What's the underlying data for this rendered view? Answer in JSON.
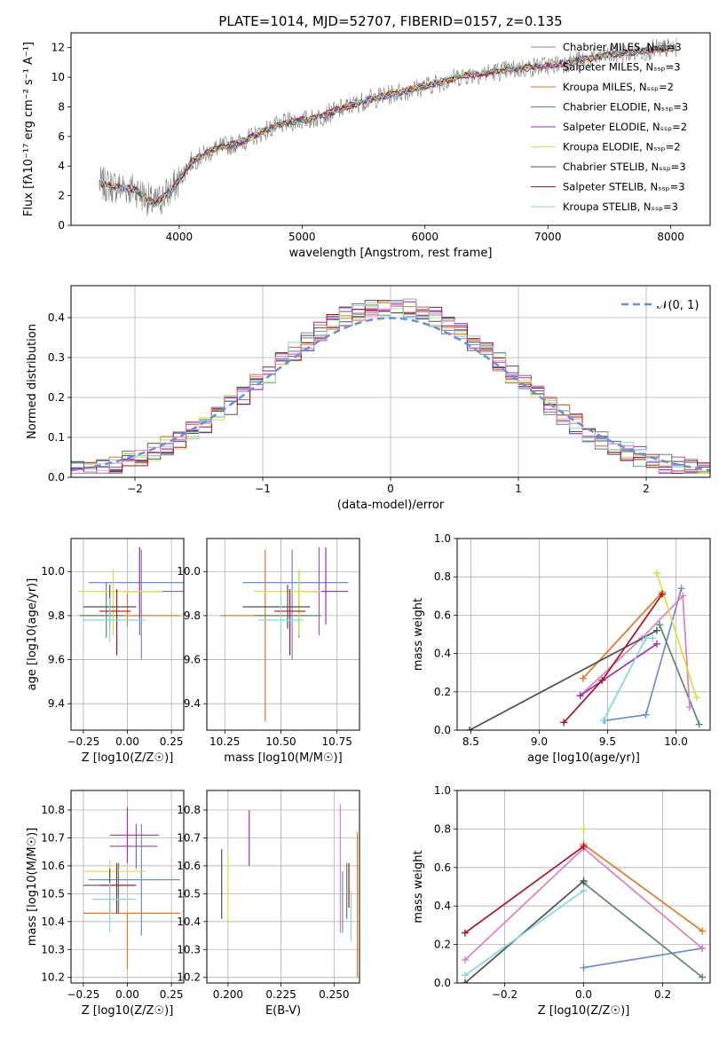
{
  "figure": {
    "title": "PLATE=1014, MJD=52707, FIBERID=0157, z=0.135"
  },
  "chart_data": [
    {
      "id": "spectrum",
      "type": "line",
      "xlabel": "wavelength [Angstrom, rest frame]",
      "ylabel": "Flux [fλ10⁻¹⁷ erg cm⁻² s⁻¹ A⁻¹]",
      "xlim": [
        3120,
        8320
      ],
      "ylim": [
        0,
        13
      ],
      "xticks": [
        4000,
        5000,
        6000,
        7000,
        8000
      ],
      "yticks": [
        0,
        2,
        4,
        6,
        8,
        10,
        12
      ],
      "legend_position": "upper-right",
      "observed_data": {
        "color": "#808080",
        "x": [
          3350,
          3500,
          3650,
          3800,
          3950,
          4100,
          4300,
          4500,
          4700,
          4900,
          5100,
          5300,
          5500,
          5700,
          5900,
          6100,
          6300,
          6500,
          6700,
          6900,
          7100,
          7300,
          7500,
          7700,
          7900,
          8050
        ],
        "y": [
          2.8,
          2.6,
          2.4,
          1.4,
          2.5,
          4.3,
          5.2,
          5.6,
          6.4,
          7.0,
          7.2,
          7.8,
          8.4,
          8.8,
          9.2,
          9.6,
          10.1,
          10.3,
          10.5,
          10.7,
          10.9,
          11.2,
          11.5,
          11.7,
          11.9,
          12.0
        ]
      },
      "series": [
        {
          "name": "Chabrier MILES, N_SSP=3",
          "color": "#6a8fd6"
        },
        {
          "name": "Salpeter MILES, N_SSP=3",
          "color": "#9b59b6"
        },
        {
          "name": "Kroupa MILES, N_SSP=2",
          "color": "#e07b22"
        },
        {
          "name": "Chabrier ELODIE, N_SSP=3",
          "color": "#5a8a6a"
        },
        {
          "name": "Salpeter ELODIE, N_SSP=2",
          "color": "#a030b0"
        },
        {
          "name": "Kroupa ELODIE, N_SSP=2",
          "color": "#d8e040"
        },
        {
          "name": "Chabrier STELIB, N_SSP=3",
          "color": "#505050"
        },
        {
          "name": "Salpeter STELIB, N_SSP=3",
          "color": "#b01020"
        },
        {
          "name": "Kroupa STELIB, N_SSP=3",
          "color": "#80d8e0"
        }
      ]
    },
    {
      "id": "residuals",
      "type": "line",
      "xlabel": "(data-model)/error",
      "ylabel": "Normed distribution",
      "xlim": [
        -2.5,
        2.5
      ],
      "ylim": [
        0,
        0.48
      ],
      "xticks": [
        -2,
        -1,
        0,
        1,
        2
      ],
      "yticks": [
        0.0,
        0.1,
        0.2,
        0.3,
        0.4
      ],
      "legend_position": "upper-right",
      "reference": {
        "name": "𝒩(0, 1)",
        "color": "#6a8fd6",
        "style": "dashed"
      }
    },
    {
      "id": "z-age",
      "type": "scatter",
      "xlabel": "Z [log10(Z/Z☉)]",
      "ylabel": "age  [log10(age/yr)]",
      "xlim": [
        -0.32,
        0.32
      ],
      "ylim": [
        9.28,
        10.15
      ],
      "xticks": [
        -0.25,
        0.0,
        0.25
      ],
      "yticks": [
        9.4,
        9.6,
        9.8,
        10.0
      ],
      "points": [
        {
          "x": 0.08,
          "y": 9.95,
          "xerr": [
            0.3,
            0.3
          ],
          "yerr": [
            0.35,
            0.15
          ],
          "color": "#6a8fd6"
        },
        {
          "x": 0.07,
          "y": 9.91,
          "xerr": [
            0.1,
            0.25
          ],
          "yerr": [
            0.2,
            0.2
          ],
          "color": "#9b59b6"
        },
        {
          "x": 0.0,
          "y": 9.8,
          "xerr": [
            0.25,
            0.3
          ],
          "yerr": [
            0.05,
            0.1
          ],
          "color": "#e07b22"
        },
        {
          "x": -0.12,
          "y": 9.8,
          "xerr": [
            0.15,
            0.1
          ],
          "yerr": [
            0.1,
            0.15
          ],
          "color": "#5a8a6a"
        },
        {
          "x": 0.07,
          "y": 9.91,
          "xerr": [
            0.07,
            0.12
          ],
          "yerr": [
            0.12,
            0.2
          ],
          "color": "#a030b0"
        },
        {
          "x": -0.08,
          "y": 9.91,
          "xerr": [
            0.2,
            0.28
          ],
          "yerr": [
            0.2,
            0.1
          ],
          "color": "#d8e040"
        },
        {
          "x": -0.1,
          "y": 9.84,
          "xerr": [
            0.15,
            0.15
          ],
          "yerr": [
            0.1,
            0.1
          ],
          "color": "#505050"
        },
        {
          "x": -0.06,
          "y": 9.82,
          "xerr": [
            0.1,
            0.08
          ],
          "yerr": [
            0.2,
            0.1
          ],
          "color": "#b01020"
        },
        {
          "x": -0.1,
          "y": 9.78,
          "xerr": [
            0.15,
            0.2
          ],
          "yerr": [
            0.1,
            0.1
          ],
          "color": "#80d8e0"
        }
      ]
    },
    {
      "id": "mass-age",
      "type": "scatter",
      "xlabel": "mass [log10(M/M☉)]",
      "ylabel": "",
      "xlim": [
        10.17,
        10.85
      ],
      "ylim": [
        9.28,
        10.15
      ],
      "xticks": [
        10.25,
        10.5,
        10.75
      ],
      "yticks": [
        9.4,
        9.6,
        9.8,
        10.0
      ],
      "points": [
        {
          "x": 10.55,
          "y": 9.95,
          "xerr": [
            0.22,
            0.25
          ],
          "yerr": [
            0.35,
            0.15
          ],
          "color": "#6a8fd6"
        },
        {
          "x": 10.67,
          "y": 9.91,
          "xerr": [
            0.05,
            0.05
          ],
          "yerr": [
            0.2,
            0.2
          ],
          "color": "#9b59b6"
        },
        {
          "x": 10.43,
          "y": 9.8,
          "xerr": [
            0.2,
            0.2
          ],
          "yerr": [
            0.48,
            0.3
          ],
          "color": "#e07b22"
        },
        {
          "x": 10.58,
          "y": 9.8,
          "xerr": [
            0.2,
            0.1
          ],
          "yerr": [
            0.1,
            0.2
          ],
          "color": "#5a8a6a"
        },
        {
          "x": 10.7,
          "y": 9.91,
          "xerr": [
            0.1,
            0.1
          ],
          "yerr": [
            0.15,
            0.2
          ],
          "color": "#a030b0"
        },
        {
          "x": 10.58,
          "y": 9.91,
          "xerr": [
            0.2,
            0.1
          ],
          "yerr": [
            0.2,
            0.1
          ],
          "color": "#d8e040"
        },
        {
          "x": 10.53,
          "y": 9.84,
          "xerr": [
            0.2,
            0.1
          ],
          "yerr": [
            0.1,
            0.1
          ],
          "color": "#505050"
        },
        {
          "x": 10.54,
          "y": 9.82,
          "xerr": [
            0.07,
            0.07
          ],
          "yerr": [
            0.2,
            0.1
          ],
          "color": "#b01020"
        },
        {
          "x": 10.5,
          "y": 9.78,
          "xerr": [
            0.1,
            0.1
          ],
          "yerr": [
            0.1,
            0.12
          ],
          "color": "#80d8e0"
        }
      ]
    },
    {
      "id": "age-weight",
      "type": "line",
      "xlabel": "age  [log10(age/yr)]",
      "ylabel": "mass weight",
      "xlim": [
        8.4,
        10.25
      ],
      "ylim": [
        0,
        1
      ],
      "xticks": [
        8.5,
        9.0,
        9.5,
        10.0
      ],
      "yticks": [
        0.0,
        0.2,
        0.4,
        0.6,
        0.8,
        1.0
      ],
      "series": [
        {
          "color": "#6a8fd6",
          "x": [
            9.48,
            9.78,
            10.04
          ],
          "y": [
            0.05,
            0.08,
            0.74
          ]
        },
        {
          "color": "#e07b22",
          "x": [
            9.32,
            9.9
          ],
          "y": [
            0.27,
            0.72
          ]
        },
        {
          "color": "#5a8a6a",
          "x": [
            9.88,
            10.17
          ],
          "y": [
            0.55,
            0.03
          ]
        },
        {
          "color": "#e37bc0",
          "x": [
            9.3,
            9.75,
            10.05,
            10.1
          ],
          "y": [
            0.18,
            0.48,
            0.7,
            0.12
          ]
        },
        {
          "color": "#a030b0",
          "x": [
            9.3,
            9.86
          ],
          "y": [
            0.18,
            0.45
          ]
        },
        {
          "color": "#d8e040",
          "x": [
            9.86,
            10.15
          ],
          "y": [
            0.82,
            0.17
          ]
        },
        {
          "color": "#505050",
          "x": [
            8.49,
            9.86
          ],
          "y": [
            0.0,
            0.52
          ]
        },
        {
          "color": "#b01020",
          "x": [
            9.18,
            9.46,
            9.9
          ],
          "y": [
            0.04,
            0.26,
            0.71
          ]
        },
        {
          "color": "#80d8e0",
          "x": [
            9.47,
            9.78,
            9.83
          ],
          "y": [
            0.05,
            0.48,
            0.48
          ]
        }
      ]
    },
    {
      "id": "z-mass",
      "type": "scatter",
      "xlabel": "Z [log10(Z/Z☉)]",
      "ylabel": "mass [log10(M/M☉)]",
      "xlim": [
        -0.32,
        0.32
      ],
      "ylim": [
        10.18,
        10.87
      ],
      "xticks": [
        -0.25,
        0.0,
        0.25
      ],
      "yticks": [
        10.2,
        10.3,
        10.4,
        10.5,
        10.6,
        10.7,
        10.8
      ],
      "points": [
        {
          "x": 0.08,
          "y": 10.55,
          "xerr": [
            0.3,
            0.22
          ],
          "yerr": [
            0.2,
            0.2
          ],
          "color": "#6a8fd6"
        },
        {
          "x": 0.05,
          "y": 10.67,
          "xerr": [
            0.15,
            0.12
          ],
          "yerr": [
            0.08,
            0.08
          ],
          "color": "#9b59b6"
        },
        {
          "x": 0.0,
          "y": 10.43,
          "xerr": [
            0.25,
            0.3
          ],
          "yerr": [
            0.2,
            0.0
          ],
          "color": "#e07b22"
        },
        {
          "x": -0.05,
          "y": 10.53,
          "xerr": [
            0.1,
            0.1
          ],
          "yerr": [
            0.1,
            0.08
          ],
          "color": "#5a8a6a"
        },
        {
          "x": 0.0,
          "y": 10.71,
          "xerr": [
            0.1,
            0.18
          ],
          "yerr": [
            0.1,
            0.1
          ],
          "color": "#a030b0"
        },
        {
          "x": -0.1,
          "y": 10.58,
          "xerr": [
            0.15,
            0.2
          ],
          "yerr": [
            0.04,
            0.04
          ],
          "color": "#d8e040"
        },
        {
          "x": -0.1,
          "y": 10.53,
          "xerr": [
            0.15,
            0.15
          ],
          "yerr": [
            0.1,
            0.06
          ],
          "color": "#505050"
        },
        {
          "x": -0.06,
          "y": 10.53,
          "xerr": [
            0.1,
            0.1
          ],
          "yerr": [
            0.1,
            0.08
          ],
          "color": "#b01020"
        },
        {
          "x": -0.1,
          "y": 10.48,
          "xerr": [
            0.1,
            0.15
          ],
          "yerr": [
            0.12,
            0.06
          ],
          "color": "#80d8e0"
        }
      ]
    },
    {
      "id": "ebv-mass",
      "type": "scatter",
      "xlabel": "E(B-V)",
      "ylabel": "",
      "xlim": [
        0.19,
        0.262
      ],
      "ylim": [
        10.18,
        10.87
      ],
      "xticks": [
        0.2,
        0.225,
        0.25
      ],
      "yticks": [
        10.2,
        10.3,
        10.4,
        10.5,
        10.6,
        10.7,
        10.8
      ],
      "points": [
        {
          "x": 0.2,
          "y": 10.52,
          "xerr": [
            0,
            0
          ],
          "yerr": [
            0.12,
            0.12
          ],
          "color": "#d8e040"
        },
        {
          "x": 0.197,
          "y": 10.54,
          "xerr": [
            0,
            0
          ],
          "yerr": [
            0.13,
            0.12
          ],
          "color": "#505050"
        },
        {
          "x": 0.21,
          "y": 10.7,
          "xerr": [
            0,
            0
          ],
          "yerr": [
            0.1,
            0.1
          ],
          "color": "#a030b0"
        },
        {
          "x": 0.253,
          "y": 10.59,
          "xerr": [
            0,
            0
          ],
          "yerr": [
            0.23,
            0.23
          ],
          "color": "#e37bc0"
        },
        {
          "x": 0.254,
          "y": 10.47,
          "xerr": [
            0,
            0
          ],
          "yerr": [
            0.11,
            0.11
          ],
          "color": "#6a8fd6"
        },
        {
          "x": 0.256,
          "y": 10.51,
          "xerr": [
            0,
            0
          ],
          "yerr": [
            0.1,
            0.1
          ],
          "color": "#5a8a6a"
        },
        {
          "x": 0.257,
          "y": 10.53,
          "xerr": [
            0,
            0
          ],
          "yerr": [
            0.08,
            0.08
          ],
          "color": "#b01020"
        },
        {
          "x": 0.258,
          "y": 10.42,
          "xerr": [
            0,
            0
          ],
          "yerr": [
            0.09,
            0.09
          ],
          "color": "#80d8e0"
        },
        {
          "x": 0.261,
          "y": 10.46,
          "xerr": [
            0,
            0
          ],
          "yerr": [
            0.26,
            0.26
          ],
          "color": "#e07b22"
        }
      ]
    },
    {
      "id": "z-weight",
      "type": "line",
      "xlabel": "Z [log10(Z/Z☉)]",
      "ylabel": "mass weight",
      "xlim": [
        -0.32,
        0.32
      ],
      "ylim": [
        0,
        1
      ],
      "xticks": [
        -0.2,
        0.0,
        0.2
      ],
      "yticks": [
        0.0,
        0.2,
        0.4,
        0.6,
        0.8,
        1.0
      ],
      "series": [
        {
          "color": "#6a8fd6",
          "x": [
            0.0,
            0.3
          ],
          "y": [
            0.08,
            0.18
          ]
        },
        {
          "color": "#e07b22",
          "x": [
            0.0,
            0.3
          ],
          "y": [
            0.72,
            0.27
          ]
        },
        {
          "color": "#5a8a6a",
          "x": [
            0.0,
            0.3
          ],
          "y": [
            0.52,
            0.03
          ]
        },
        {
          "color": "#e37bc0",
          "x": [
            -0.3,
            0.0,
            0.3
          ],
          "y": [
            0.12,
            0.7,
            0.18
          ]
        },
        {
          "color": "#505050",
          "x": [
            -0.3,
            0.0
          ],
          "y": [
            0.0,
            0.53
          ]
        },
        {
          "color": "#b01020",
          "x": [
            -0.3,
            0.0
          ],
          "y": [
            0.26,
            0.71
          ]
        },
        {
          "color": "#80d8e0",
          "x": [
            -0.3,
            0.0
          ],
          "y": [
            0.04,
            0.48
          ]
        },
        {
          "color": "#d8e040",
          "x": [
            0.0,
            0.0
          ],
          "y": [
            0.8,
            0.8
          ]
        }
      ]
    }
  ]
}
